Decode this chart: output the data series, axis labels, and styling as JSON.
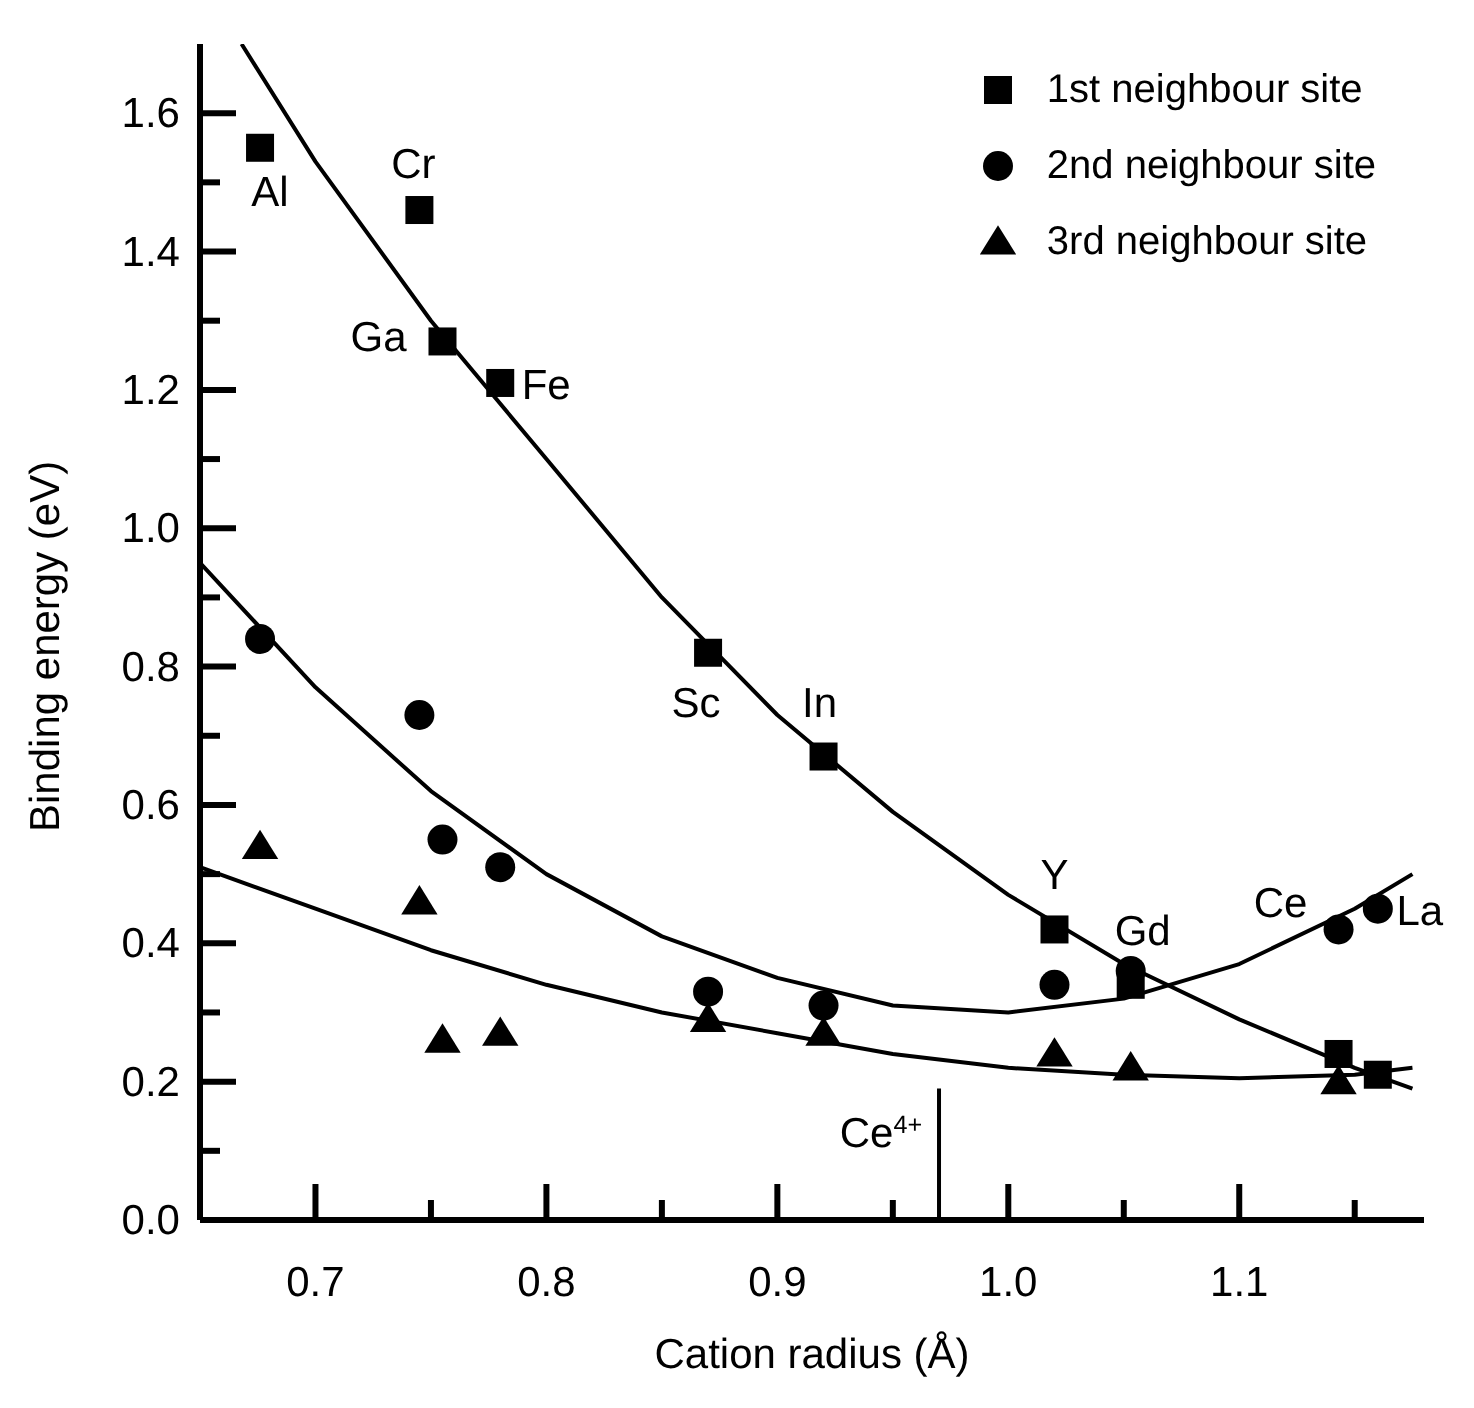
{
  "chart_data": {
    "type": "scatter",
    "xlabel": "Cation radius (Å)",
    "ylabel": "Binding energy (eV)",
    "xlim": [
      0.65,
      1.18
    ],
    "ylim": [
      0,
      1.7
    ],
    "xticks": [
      {
        "value": 0.7,
        "label": "0.7"
      },
      {
        "value": 0.75,
        "label": null
      },
      {
        "value": 0.8,
        "label": "0.8"
      },
      {
        "value": 0.85,
        "label": null
      },
      {
        "value": 0.9,
        "label": "0.9"
      },
      {
        "value": 0.95,
        "label": null
      },
      {
        "value": 1.0,
        "label": "1.0"
      },
      {
        "value": 1.05,
        "label": null
      },
      {
        "value": 1.1,
        "label": "1.1"
      },
      {
        "value": 1.15,
        "label": null
      }
    ],
    "yticks": [
      {
        "value": 0,
        "label": "0.0"
      },
      {
        "value": 0.1,
        "label": null
      },
      {
        "value": 0.2,
        "label": "0.2"
      },
      {
        "value": 0.3,
        "label": null
      },
      {
        "value": 0.4,
        "label": "0.4"
      },
      {
        "value": 0.5,
        "label": null
      },
      {
        "value": 0.6,
        "label": "0.6"
      },
      {
        "value": 0.7,
        "label": null
      },
      {
        "value": 0.8,
        "label": "0.8"
      },
      {
        "value": 0.9,
        "label": null
      },
      {
        "value": 1.0,
        "label": "1.0"
      },
      {
        "value": 1.1,
        "label": null
      },
      {
        "value": 1.2,
        "label": "1.2"
      },
      {
        "value": 1.3,
        "label": null
      },
      {
        "value": 1.4,
        "label": "1.4"
      },
      {
        "value": 1.5,
        "label": null
      },
      {
        "value": 1.6,
        "label": "1.6"
      }
    ],
    "grid": false,
    "legend": "top right",
    "series": [
      {
        "name": "1st neighbour site",
        "marker": "square",
        "color": "#000000",
        "x": [
          0.676,
          0.745,
          0.755,
          0.78,
          0.87,
          0.92,
          1.02,
          1.053,
          1.143,
          1.16
        ],
        "values": [
          1.55,
          1.46,
          1.27,
          1.21,
          0.82,
          0.67,
          0.42,
          0.34,
          0.24,
          0.21
        ]
      },
      {
        "name": "2nd neighbour site",
        "marker": "circle",
        "color": "#000000",
        "x": [
          0.676,
          0.745,
          0.755,
          0.78,
          0.87,
          0.92,
          1.02,
          1.053,
          1.143,
          1.16
        ],
        "values": [
          0.84,
          0.73,
          0.55,
          0.51,
          0.33,
          0.31,
          0.34,
          0.36,
          0.42,
          0.45
        ]
      },
      {
        "name": "3rd neighbour site",
        "marker": "triangle",
        "color": "#000000",
        "x": [
          0.676,
          0.745,
          0.755,
          0.78,
          0.87,
          0.92,
          1.02,
          1.053,
          1.143
        ],
        "values": [
          0.54,
          0.46,
          0.26,
          0.27,
          0.29,
          0.27,
          0.24,
          0.22,
          0.2
        ]
      },
      {
        "type": "line",
        "marker": "none",
        "color": "#000000",
        "x": [
          0.668,
          0.7,
          0.75,
          0.8,
          0.85,
          0.9,
          0.95,
          1.0,
          1.05,
          1.1,
          1.15,
          1.175
        ],
        "values": [
          1.7,
          1.53,
          1.3,
          1.1,
          0.9,
          0.73,
          0.59,
          0.47,
          0.37,
          0.29,
          0.22,
          0.19
        ]
      },
      {
        "type": "line",
        "marker": "none",
        "color": "#000000",
        "x": [
          0.65,
          0.7,
          0.75,
          0.8,
          0.85,
          0.9,
          0.95,
          1.0,
          1.05,
          1.1,
          1.15,
          1.175
        ],
        "values": [
          0.95,
          0.77,
          0.62,
          0.5,
          0.41,
          0.35,
          0.31,
          0.3,
          0.32,
          0.37,
          0.45,
          0.5
        ]
      },
      {
        "type": "line",
        "marker": "none",
        "color": "#000000",
        "x": [
          0.65,
          0.7,
          0.75,
          0.8,
          0.85,
          0.9,
          0.95,
          1.0,
          1.05,
          1.1,
          1.15,
          1.175
        ],
        "values": [
          0.51,
          0.45,
          0.39,
          0.34,
          0.3,
          0.27,
          0.24,
          0.22,
          0.21,
          0.205,
          0.21,
          0.22
        ]
      },
      {
        "type": "line",
        "marker": "none",
        "color": "#000000",
        "x": [
          0.97,
          0.97
        ],
        "values": [
          0,
          0.19
        ]
      }
    ],
    "annotations": [
      {
        "text": "Al",
        "x": 0.676,
        "y": 1.55
      },
      {
        "text": "Cr",
        "x": 0.745,
        "y": 1.46
      },
      {
        "text": "Ga",
        "x": 0.755,
        "y": 1.27
      },
      {
        "text": "Fe",
        "x": 0.78,
        "y": 1.21
      },
      {
        "text": "Sc",
        "x": 0.87,
        "y": 0.82
      },
      {
        "text": "In",
        "x": 0.92,
        "y": 0.67
      },
      {
        "text": "Y",
        "x": 1.02,
        "y": 0.42
      },
      {
        "text": "Gd",
        "x": 1.053,
        "y": 0.34
      },
      {
        "text": "Ce",
        "x": 1.143,
        "y": 0.42
      },
      {
        "text": "La",
        "x": 1.16,
        "y": 0.45
      },
      {
        "text": "Ce$^{4+}$",
        "x": 0.97,
        "y": 0.19
      }
    ]
  }
}
